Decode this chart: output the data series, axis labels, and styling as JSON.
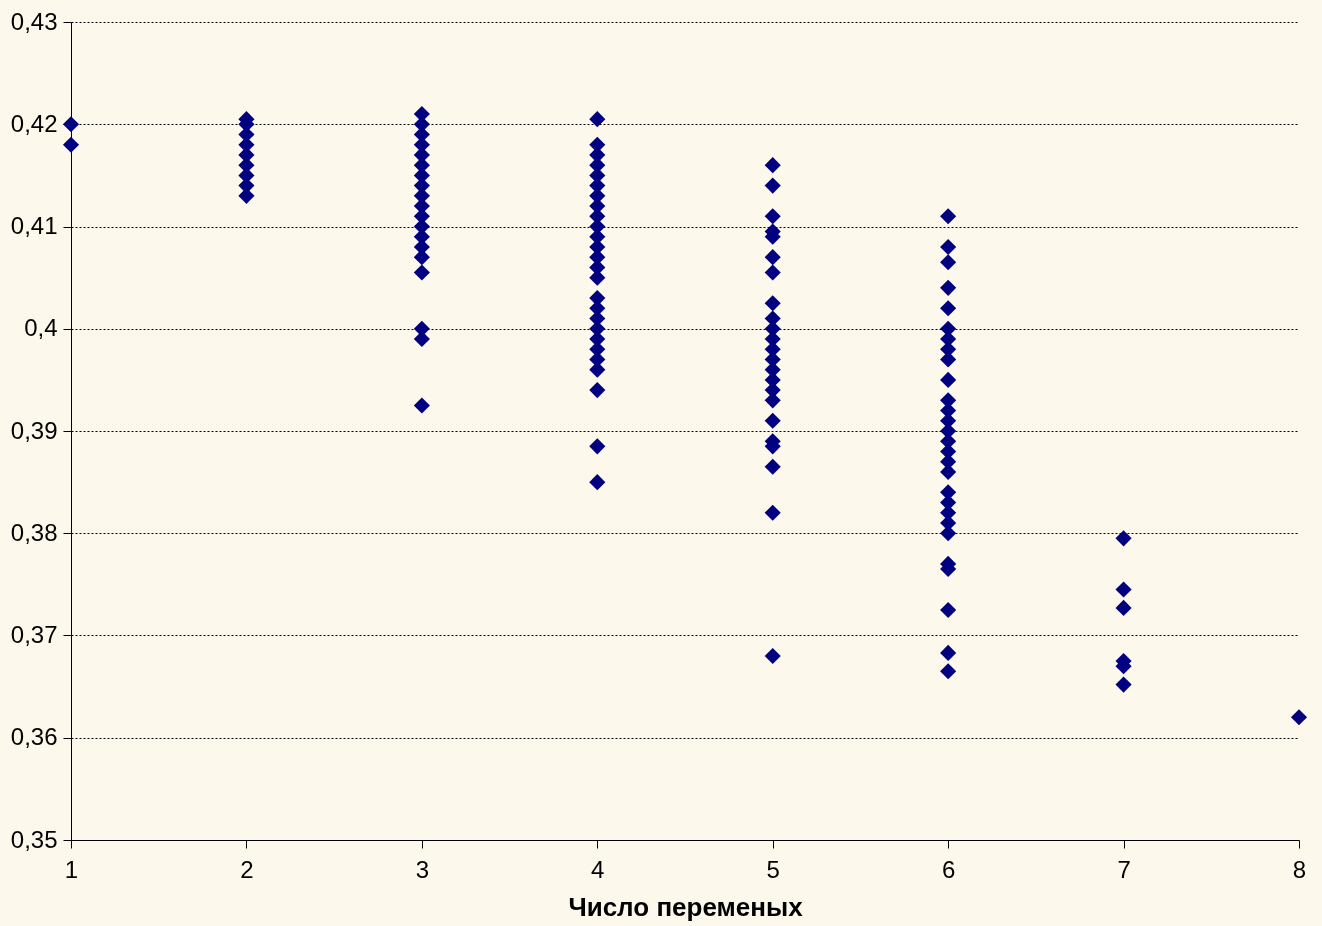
{
  "chart_data": {
    "type": "scatter",
    "xlabel": "Число переменых",
    "marker": "diamond",
    "grid": "y",
    "xlim": [
      1,
      8
    ],
    "xticks": [
      1,
      2,
      3,
      4,
      5,
      6,
      7,
      8
    ],
    "ylim": [
      0.35,
      0.43
    ],
    "yticks": [
      {
        "value": 0.35,
        "label": "0,35"
      },
      {
        "value": 0.36,
        "label": "0,36"
      },
      {
        "value": 0.37,
        "label": "0,37"
      },
      {
        "value": 0.38,
        "label": "0,38"
      },
      {
        "value": 0.39,
        "label": "0,39"
      },
      {
        "value": 0.4,
        "label": "0,4"
      },
      {
        "value": 0.41,
        "label": "0,41"
      },
      {
        "value": 0.42,
        "label": "0,42"
      },
      {
        "value": 0.43,
        "label": "0,43"
      }
    ],
    "series": [
      {
        "color": "#000080",
        "x": [
          1,
          1,
          2,
          2,
          2,
          2,
          2,
          2,
          2,
          2,
          2,
          3,
          3,
          3,
          3,
          3,
          3,
          3,
          3,
          3,
          3,
          3,
          3,
          3,
          3,
          3,
          3,
          3,
          3,
          3,
          4,
          4,
          4,
          4,
          4,
          4,
          4,
          4,
          4,
          4,
          4,
          4,
          4,
          4,
          4,
          4,
          4,
          4,
          4,
          4,
          4,
          4,
          4,
          4,
          4,
          4,
          5,
          5,
          5,
          5,
          5,
          5,
          5,
          5,
          5,
          5,
          5,
          5,
          5,
          5,
          5,
          5,
          5,
          5,
          5,
          5,
          5,
          5,
          5,
          6,
          6,
          6,
          6,
          6,
          6,
          6,
          6,
          6,
          6,
          6,
          6,
          6,
          6,
          6,
          6,
          6,
          6,
          6,
          6,
          6,
          6,
          6,
          6,
          6,
          6,
          6,
          6,
          7,
          7,
          7,
          7,
          7,
          7,
          8
        ],
        "values": [
          0.42,
          0.418,
          0.4205,
          0.42,
          0.419,
          0.418,
          0.417,
          0.416,
          0.415,
          0.414,
          0.413,
          0.421,
          0.42,
          0.419,
          0.418,
          0.417,
          0.416,
          0.415,
          0.414,
          0.413,
          0.412,
          0.411,
          0.41,
          0.409,
          0.408,
          0.407,
          0.4055,
          0.4,
          0.399,
          0.3925,
          0.4205,
          0.418,
          0.417,
          0.416,
          0.415,
          0.414,
          0.413,
          0.412,
          0.411,
          0.41,
          0.409,
          0.408,
          0.407,
          0.406,
          0.405,
          0.403,
          0.402,
          0.401,
          0.4,
          0.399,
          0.398,
          0.397,
          0.396,
          0.394,
          0.3885,
          0.385,
          0.416,
          0.414,
          0.411,
          0.4095,
          0.409,
          0.407,
          0.4055,
          0.4025,
          0.401,
          0.4,
          0.399,
          0.398,
          0.397,
          0.396,
          0.395,
          0.394,
          0.393,
          0.391,
          0.389,
          0.3885,
          0.3865,
          0.382,
          0.368,
          0.411,
          0.408,
          0.4065,
          0.404,
          0.402,
          0.4,
          0.399,
          0.398,
          0.397,
          0.395,
          0.393,
          0.392,
          0.391,
          0.39,
          0.389,
          0.388,
          0.387,
          0.386,
          0.384,
          0.383,
          0.382,
          0.381,
          0.38,
          0.377,
          0.3765,
          0.3725,
          0.3683,
          0.3665,
          0.3795,
          0.3745,
          0.3727,
          0.3675,
          0.367,
          0.3652,
          0.362
        ]
      }
    ]
  }
}
